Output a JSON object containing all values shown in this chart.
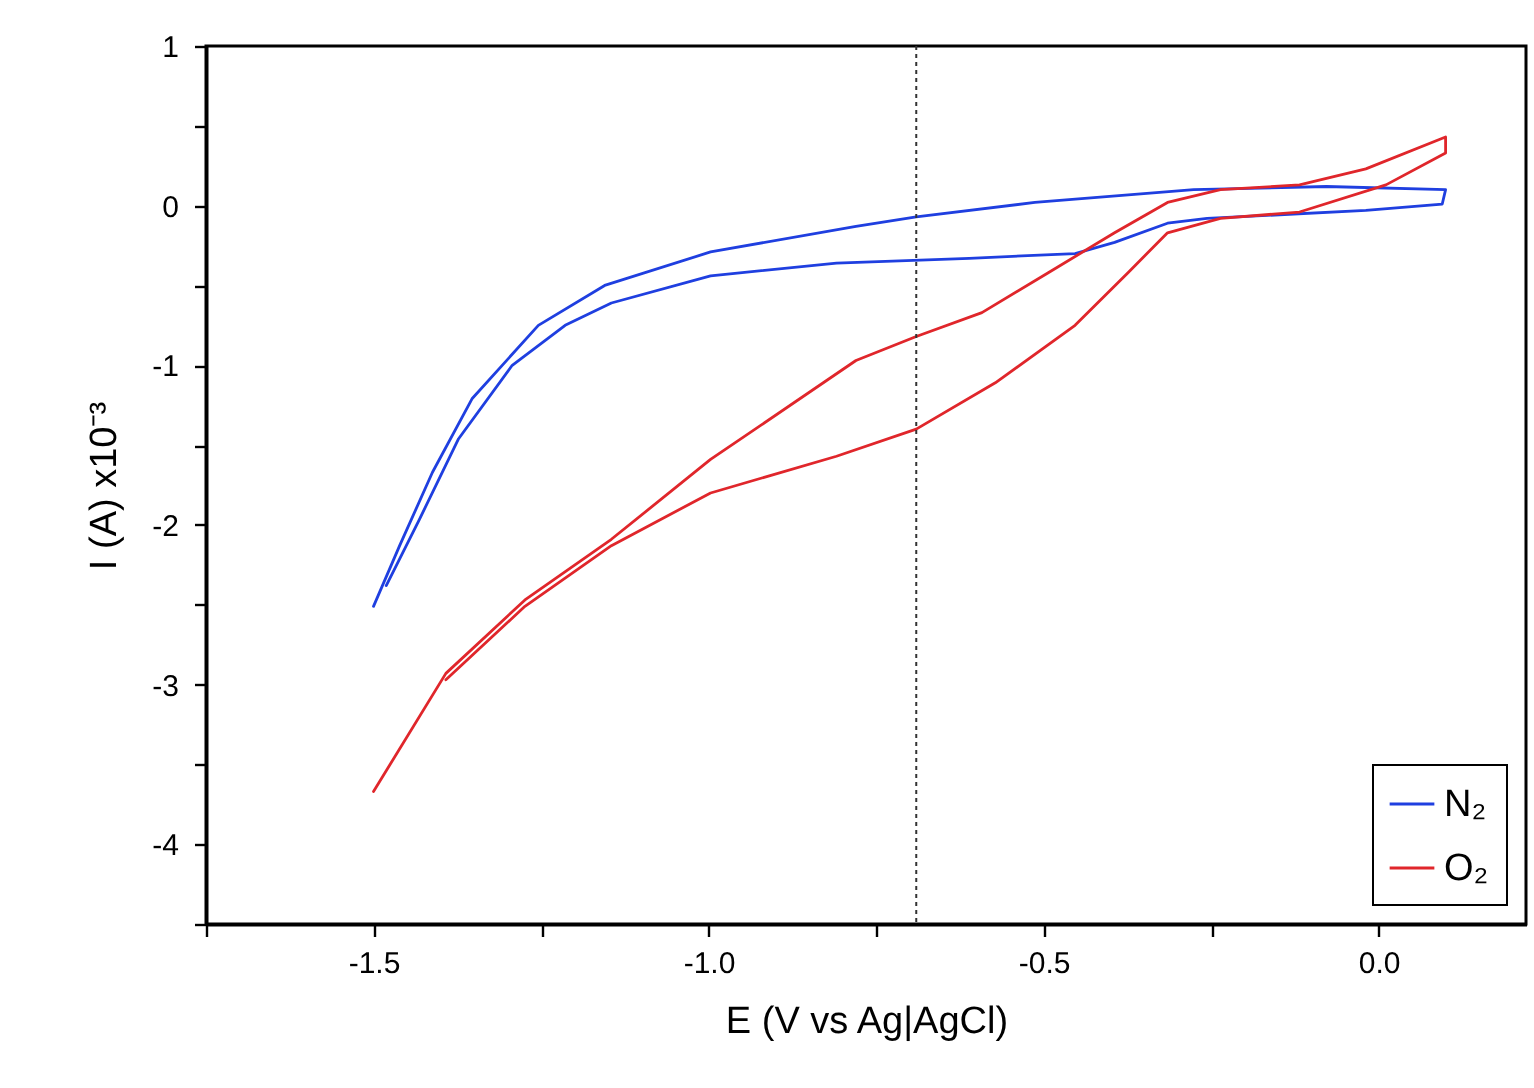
{
  "chart_data": {
    "type": "line",
    "xlabel": "E (V vs Ag|AgCl)",
    "ylabel": "I (A) x10⁻³",
    "xlim": [
      -1.75,
      0.22
    ],
    "xticks": [
      {
        "value": -1.75,
        "label": null
      },
      -1.5,
      {
        "value": -1.25,
        "label": null
      },
      {
        "value": -1.0,
        "label": "-1.0"
      },
      {
        "value": -0.75,
        "label": null
      },
      -0.5,
      {
        "value": -0.25,
        "label": null
      },
      {
        "value": 0,
        "label": "0.0"
      }
    ],
    "ylim": [
      -4.5,
      1
    ],
    "yticks": [
      1,
      {
        "value": 0.5,
        "label": null
      },
      0,
      {
        "value": -0.5,
        "label": null
      },
      -1,
      {
        "value": -1.5,
        "label": null
      },
      -2,
      {
        "value": -2.5,
        "label": null
      },
      -3,
      {
        "value": -3.5,
        "label": null
      },
      -4,
      {
        "value": -4.5,
        "label": null
      }
    ],
    "legend": "bottom right",
    "grid": false,
    "marker": "none",
    "line_style": "solid",
    "ref_lines": [
      {
        "axis": "x",
        "value": -0.69,
        "line_style": "dotted",
        "color": "#333333"
      }
    ],
    "series": [
      {
        "name": "N₂",
        "color": "#1f3fe0",
        "x": [
          -1.5,
          -1.461,
          -1.412,
          -1.353,
          -1.254,
          -1.155,
          -0.997,
          -0.78,
          -0.69,
          -0.513,
          -0.276,
          -0.078,
          0.1,
          0.095,
          -0.019,
          -0.256,
          -0.315,
          -0.394,
          -0.453,
          -0.611,
          -0.809,
          -0.997,
          -1.145,
          -1.214,
          -1.293,
          -1.373,
          -1.432,
          -1.481
        ],
        "values": [
          -2.51,
          -2.13,
          -1.67,
          -1.21,
          -0.75,
          -0.5,
          -0.29,
          -0.13,
          -0.07,
          0.02,
          0.1,
          0.12,
          0.1,
          0.01,
          -0.03,
          -0.08,
          -0.11,
          -0.23,
          -0.3,
          -0.33,
          -0.36,
          -0.44,
          -0.61,
          -0.75,
          -1.0,
          -1.46,
          -1.97,
          -2.38
        ]
      },
      {
        "name": "O₂",
        "color": "#e0262b",
        "x": [
          -1.5,
          -1.392,
          -1.274,
          -1.145,
          -0.997,
          -0.78,
          -0.69,
          -0.592,
          -0.493,
          -0.394,
          -0.315,
          -0.236,
          -0.118,
          -0.019,
          0.1,
          0.1,
          0.011,
          -0.118,
          -0.236,
          -0.315,
          -0.374,
          -0.453,
          -0.572,
          -0.69,
          -0.809,
          -0.997,
          -1.145,
          -1.274,
          -1.392
        ],
        "values": [
          -3.67,
          -2.93,
          -2.47,
          -2.09,
          -1.59,
          -0.97,
          -0.82,
          -0.67,
          -0.42,
          -0.17,
          0.02,
          0.1,
          0.13,
          0.23,
          0.43,
          0.33,
          0.13,
          -0.04,
          -0.08,
          -0.17,
          -0.42,
          -0.75,
          -1.11,
          -1.4,
          -1.57,
          -1.8,
          -2.13,
          -2.51,
          -2.97
        ]
      }
    ]
  }
}
